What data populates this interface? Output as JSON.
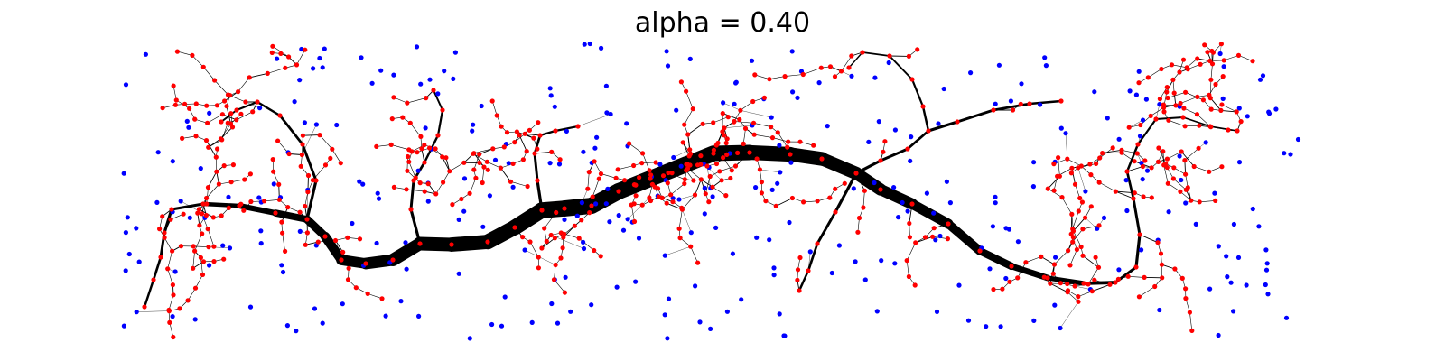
{
  "title": "alpha = 0.40",
  "colors": {
    "background": "#ffffff",
    "edge": "#000000",
    "node_on_network": "#ff0000",
    "node_unconnected": "#0000ff"
  },
  "generation": {
    "seed": 40,
    "blue_nodes": 330,
    "red_nodes": 540
  }
}
